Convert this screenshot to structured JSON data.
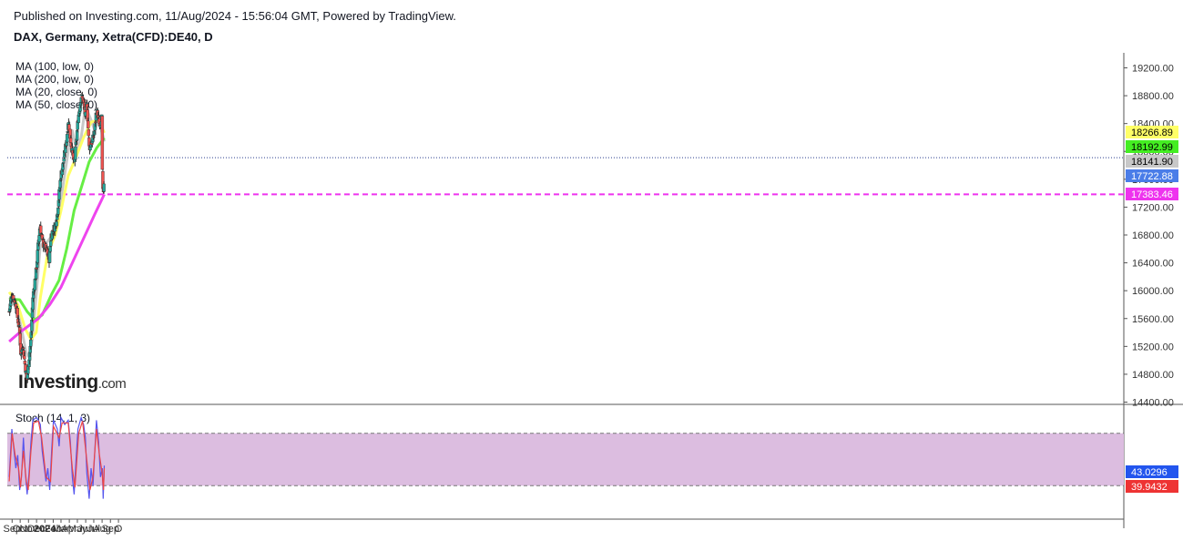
{
  "header": {
    "published": "Published on Investing.com, 11/Aug/2024 - 15:56:04 GMT, Powered by TradingView.",
    "symbol": "DAX, Germany, Xetra(CFD):DE40, D"
  },
  "logo": {
    "name": "Investing",
    "suffix": ".com"
  },
  "ma_legend": [
    "MA (100, low, 0)",
    "MA (200, low, 0)",
    "MA (20, close, 0)",
    "MA (50, close, 0)"
  ],
  "stoch_title": "Stoch (14, 1, 3)",
  "colors": {
    "up": "#26a69a",
    "down": "#ef5350",
    "ma20": "#c8c8c8",
    "ma50": "#ffff66",
    "ma100": "#66ee44",
    "ma200": "#ee44ee",
    "stoch_k": "#5555ee",
    "stoch_d": "#ee4444",
    "stoch_band": "#dcbde0"
  },
  "chart_data": [
    {
      "type": "candlestick",
      "ylim": [
        14200,
        19400
      ],
      "x_labels": [
        "Sep",
        "Oct",
        "Nov",
        "Dec",
        "2024",
        "Feb",
        "Mar",
        "Apr",
        "May",
        "Jun",
        "Jul",
        "Aug",
        "Sep",
        "O"
      ],
      "y_ticks": [
        "19200.00",
        "18800.00",
        "18400.00",
        "18000.00",
        "17600.00",
        "17200.00",
        "16800.00",
        "16400.00",
        "16000.00",
        "15600.00",
        "15200.00",
        "14800.00",
        "14400.00"
      ],
      "price_labels": [
        {
          "value": 18266.89,
          "label": "18266.89",
          "series": "MA (50, close, 0)"
        },
        {
          "value": 18192.99,
          "label": "18192.99",
          "series": "MA (100, low, 0)"
        },
        {
          "value": 18141.9,
          "label": "18141.90",
          "series": "MA (20, close, 0)"
        },
        {
          "value": 17722.88,
          "label": "17722.88",
          "series": "Close"
        },
        {
          "value": 17383.46,
          "label": "17383.46",
          "series": "MA (200, low, 0)"
        }
      ],
      "horizontal_levels": [
        17383.46,
        17910
      ],
      "close_path": [
        {
          "date": "2023-08-21",
          "value": 15700
        },
        {
          "date": "2023-08-31",
          "value": 15950
        },
        {
          "date": "2023-09-15",
          "value": 15800
        },
        {
          "date": "2023-09-29",
          "value": 15400
        },
        {
          "date": "2023-10-04",
          "value": 15050
        },
        {
          "date": "2023-10-10",
          "value": 15250
        },
        {
          "date": "2023-10-26",
          "value": 14700
        },
        {
          "date": "2023-11-01",
          "value": 14950
        },
        {
          "date": "2023-11-10",
          "value": 15300
        },
        {
          "date": "2023-11-17",
          "value": 15900
        },
        {
          "date": "2023-11-30",
          "value": 16300
        },
        {
          "date": "2023-12-08",
          "value": 16700
        },
        {
          "date": "2023-12-14",
          "value": 16950
        },
        {
          "date": "2023-12-22",
          "value": 16700
        },
        {
          "date": "2024-01-05",
          "value": 16600
        },
        {
          "date": "2024-01-17",
          "value": 16450
        },
        {
          "date": "2024-01-24",
          "value": 16800
        },
        {
          "date": "2024-02-09",
          "value": 16950
        },
        {
          "date": "2024-02-16",
          "value": 17100
        },
        {
          "date": "2024-02-29",
          "value": 17650
        },
        {
          "date": "2024-03-08",
          "value": 17800
        },
        {
          "date": "2024-03-21",
          "value": 18150
        },
        {
          "date": "2024-03-28",
          "value": 18450
        },
        {
          "date": "2024-04-03",
          "value": 18250
        },
        {
          "date": "2024-04-19",
          "value": 17800
        },
        {
          "date": "2024-04-26",
          "value": 18100
        },
        {
          "date": "2024-05-03",
          "value": 18450
        },
        {
          "date": "2024-05-15",
          "value": 18800
        },
        {
          "date": "2024-05-24",
          "value": 18700
        },
        {
          "date": "2024-05-31",
          "value": 18500
        },
        {
          "date": "2024-06-05",
          "value": 18700
        },
        {
          "date": "2024-06-14",
          "value": 18050
        },
        {
          "date": "2024-06-26",
          "value": 18150
        },
        {
          "date": "2024-07-04",
          "value": 18300
        },
        {
          "date": "2024-07-11",
          "value": 18600
        },
        {
          "date": "2024-07-19",
          "value": 18450
        },
        {
          "date": "2024-07-25",
          "value": 18300
        },
        {
          "date": "2024-07-31",
          "value": 18500
        },
        {
          "date": "2024-08-02",
          "value": 17650
        },
        {
          "date": "2024-08-05",
          "value": 17300
        },
        {
          "date": "2024-08-07",
          "value": 17450
        },
        {
          "date": "2024-08-09",
          "value": 17722.88
        }
      ],
      "moving_averages": [
        {
          "name": "MA (20, close, 0)",
          "points": [
            {
              "date": "2023-08-21",
              "value": 15900
            },
            {
              "date": "2023-09-15",
              "value": 15820
            },
            {
              "date": "2023-10-06",
              "value": 15450
            },
            {
              "date": "2023-10-24",
              "value": 15100
            },
            {
              "date": "2023-11-03",
              "value": 15050
            },
            {
              "date": "2023-11-15",
              "value": 15300
            },
            {
              "date": "2023-12-01",
              "value": 16000
            },
            {
              "date": "2023-12-15",
              "value": 16650
            },
            {
              "date": "2024-01-10",
              "value": 16700
            },
            {
              "date": "2024-02-09",
              "value": 16850
            },
            {
              "date": "2024-02-29",
              "value": 17300
            },
            {
              "date": "2024-03-28",
              "value": 18000
            },
            {
              "date": "2024-04-12",
              "value": 18300
            },
            {
              "date": "2024-04-29",
              "value": 18000
            },
            {
              "date": "2024-05-15",
              "value": 18200
            },
            {
              "date": "2024-05-31",
              "value": 18650
            },
            {
              "date": "2024-06-21",
              "value": 18450
            },
            {
              "date": "2024-07-05",
              "value": 18300
            },
            {
              "date": "2024-07-19",
              "value": 18450
            },
            {
              "date": "2024-08-09",
              "value": 18141.9
            }
          ]
        },
        {
          "name": "MA (50, close, 0)",
          "points": [
            {
              "date": "2023-08-21",
              "value": 15980
            },
            {
              "date": "2023-09-22",
              "value": 15800
            },
            {
              "date": "2023-10-20",
              "value": 15450
            },
            {
              "date": "2023-11-10",
              "value": 15300
            },
            {
              "date": "2023-11-30",
              "value": 15400
            },
            {
              "date": "2023-12-15",
              "value": 15900
            },
            {
              "date": "2024-01-12",
              "value": 16550
            },
            {
              "date": "2024-02-09",
              "value": 16800
            },
            {
              "date": "2024-03-01",
              "value": 17150
            },
            {
              "date": "2024-03-28",
              "value": 17650
            },
            {
              "date": "2024-04-24",
              "value": 17900
            },
            {
              "date": "2024-05-24",
              "value": 18200
            },
            {
              "date": "2024-06-21",
              "value": 18420
            },
            {
              "date": "2024-07-19",
              "value": 18450
            },
            {
              "date": "2024-08-09",
              "value": 18266.89
            }
          ]
        },
        {
          "name": "MA (100, low, 0)",
          "points": [
            {
              "date": "2023-08-21",
              "value": 15880
            },
            {
              "date": "2023-09-29",
              "value": 15870
            },
            {
              "date": "2023-10-27",
              "value": 15700
            },
            {
              "date": "2023-11-24",
              "value": 15580
            },
            {
              "date": "2023-12-22",
              "value": 15650
            },
            {
              "date": "2024-01-26",
              "value": 15950
            },
            {
              "date": "2024-02-23",
              "value": 16150
            },
            {
              "date": "2024-03-22",
              "value": 16600
            },
            {
              "date": "2024-04-19",
              "value": 17150
            },
            {
              "date": "2024-05-17",
              "value": 17500
            },
            {
              "date": "2024-06-14",
              "value": 17850
            },
            {
              "date": "2024-07-12",
              "value": 18050
            },
            {
              "date": "2024-08-09",
              "value": 18192.99
            }
          ]
        },
        {
          "name": "MA (200, low, 0)",
          "points": [
            {
              "date": "2023-08-21",
              "value": 15270
            },
            {
              "date": "2023-09-29",
              "value": 15400
            },
            {
              "date": "2023-11-03",
              "value": 15500
            },
            {
              "date": "2023-12-08",
              "value": 15600
            },
            {
              "date": "2024-01-19",
              "value": 15800
            },
            {
              "date": "2024-03-01",
              "value": 16050
            },
            {
              "date": "2024-04-12",
              "value": 16400
            },
            {
              "date": "2024-05-24",
              "value": 16750
            },
            {
              "date": "2024-07-05",
              "value": 17100
            },
            {
              "date": "2024-08-09",
              "value": 17383.46
            }
          ]
        }
      ]
    },
    {
      "type": "line",
      "title": "Stoch (14, 1, 3)",
      "ylim": [
        -10,
        110
      ],
      "band": [
        20,
        80
      ],
      "price_labels": [
        {
          "value": 43.0296,
          "label": "43.0296",
          "series": "%K"
        },
        {
          "value": 39.9432,
          "label": "39.9432",
          "series": "%D"
        }
      ],
      "k_path": [
        {
          "date": "2023-08-21",
          "value": 30
        },
        {
          "date": "2023-08-31",
          "value": 85
        },
        {
          "date": "2023-09-08",
          "value": 60
        },
        {
          "date": "2023-09-15",
          "value": 40
        },
        {
          "date": "2023-09-22",
          "value": 55
        },
        {
          "date": "2023-09-29",
          "value": 15
        },
        {
          "date": "2023-10-06",
          "value": 30
        },
        {
          "date": "2023-10-13",
          "value": 75
        },
        {
          "date": "2023-10-20",
          "value": 35
        },
        {
          "date": "2023-10-27",
          "value": 10
        },
        {
          "date": "2023-11-03",
          "value": 35
        },
        {
          "date": "2023-11-10",
          "value": 70
        },
        {
          "date": "2023-11-17",
          "value": 95
        },
        {
          "date": "2023-11-30",
          "value": 98
        },
        {
          "date": "2023-12-08",
          "value": 95
        },
        {
          "date": "2023-12-15",
          "value": 90
        },
        {
          "date": "2023-12-22",
          "value": 60
        },
        {
          "date": "2024-01-05",
          "value": 25
        },
        {
          "date": "2024-01-12",
          "value": 40
        },
        {
          "date": "2024-01-19",
          "value": 15
        },
        {
          "date": "2024-01-26",
          "value": 60
        },
        {
          "date": "2024-02-02",
          "value": 95
        },
        {
          "date": "2024-02-16",
          "value": 85
        },
        {
          "date": "2024-02-23",
          "value": 65
        },
        {
          "date": "2024-03-01",
          "value": 98
        },
        {
          "date": "2024-03-15",
          "value": 90
        },
        {
          "date": "2024-03-28",
          "value": 95
        },
        {
          "date": "2024-04-05",
          "value": 70
        },
        {
          "date": "2024-04-12",
          "value": 30
        },
        {
          "date": "2024-04-19",
          "value": 10
        },
        {
          "date": "2024-04-26",
          "value": 50
        },
        {
          "date": "2024-05-03",
          "value": 85
        },
        {
          "date": "2024-05-15",
          "value": 98
        },
        {
          "date": "2024-05-24",
          "value": 90
        },
        {
          "date": "2024-05-31",
          "value": 75
        },
        {
          "date": "2024-06-05",
          "value": 35
        },
        {
          "date": "2024-06-14",
          "value": 5
        },
        {
          "date": "2024-06-21",
          "value": 40
        },
        {
          "date": "2024-06-28",
          "value": 20
        },
        {
          "date": "2024-07-05",
          "value": 60
        },
        {
          "date": "2024-07-11",
          "value": 95
        },
        {
          "date": "2024-07-19",
          "value": 70
        },
        {
          "date": "2024-07-26",
          "value": 30
        },
        {
          "date": "2024-08-02",
          "value": 40
        },
        {
          "date": "2024-08-05",
          "value": 5
        },
        {
          "date": "2024-08-09",
          "value": 43.0296
        }
      ],
      "d_path": [
        {
          "date": "2023-08-21",
          "value": 25
        },
        {
          "date": "2023-09-01",
          "value": 80
        },
        {
          "date": "2023-09-12",
          "value": 55
        },
        {
          "date": "2023-09-25",
          "value": 40
        },
        {
          "date": "2023-10-02",
          "value": 18
        },
        {
          "date": "2023-10-13",
          "value": 60
        },
        {
          "date": "2023-10-24",
          "value": 25
        },
        {
          "date": "2023-10-31",
          "value": 15
        },
        {
          "date": "2023-11-10",
          "value": 60
        },
        {
          "date": "2023-11-20",
          "value": 92
        },
        {
          "date": "2023-12-08",
          "value": 94
        },
        {
          "date": "2023-12-20",
          "value": 75
        },
        {
          "date": "2024-01-05",
          "value": 30
        },
        {
          "date": "2024-01-22",
          "value": 25
        },
        {
          "date": "2024-02-02",
          "value": 88
        },
        {
          "date": "2024-02-23",
          "value": 75
        },
        {
          "date": "2024-03-05",
          "value": 92
        },
        {
          "date": "2024-03-28",
          "value": 92
        },
        {
          "date": "2024-04-12",
          "value": 40
        },
        {
          "date": "2024-04-22",
          "value": 18
        },
        {
          "date": "2024-05-06",
          "value": 80
        },
        {
          "date": "2024-05-20",
          "value": 94
        },
        {
          "date": "2024-06-03",
          "value": 55
        },
        {
          "date": "2024-06-17",
          "value": 15
        },
        {
          "date": "2024-06-28",
          "value": 30
        },
        {
          "date": "2024-07-11",
          "value": 85
        },
        {
          "date": "2024-07-22",
          "value": 55
        },
        {
          "date": "2024-08-01",
          "value": 35
        },
        {
          "date": "2024-08-06",
          "value": 15
        },
        {
          "date": "2024-08-09",
          "value": 39.9432
        }
      ]
    }
  ]
}
